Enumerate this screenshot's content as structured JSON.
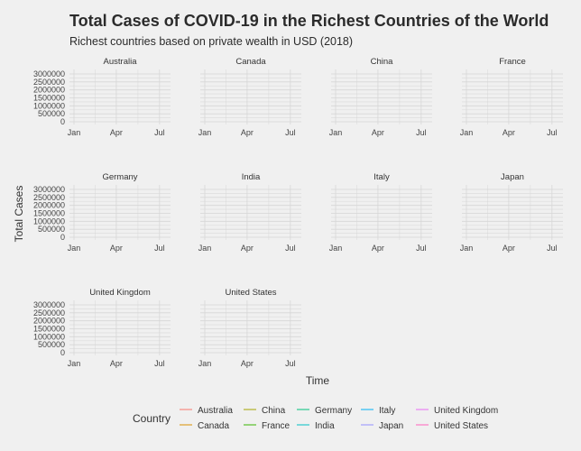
{
  "chart_data": {
    "type": "line",
    "title": "Total Cases of COVID-19 in the Richest Countries of the World",
    "subtitle": "Richest countries based on private wealth in USD (2018)",
    "xlabel": "Time",
    "ylabel": "Total Cases",
    "x_ticks": [
      "Jan",
      "Apr",
      "Jul"
    ],
    "y_ticks": [
      "0",
      "500000",
      "1000000",
      "1500000",
      "2000000",
      "2500000",
      "3000000"
    ],
    "ylim": [
      0,
      3000000
    ],
    "grid": true,
    "facets": [
      "Australia",
      "Canada",
      "China",
      "France",
      "Germany",
      "India",
      "Italy",
      "Japan",
      "United Kingdom",
      "United States"
    ],
    "series": [
      {
        "name": "Australia",
        "color": "#F8766D"
      },
      {
        "name": "Canada",
        "color": "#D89000"
      },
      {
        "name": "China",
        "color": "#A3A500"
      },
      {
        "name": "France",
        "color": "#39B600"
      },
      {
        "name": "Germany",
        "color": "#00BF7D"
      },
      {
        "name": "India",
        "color": "#00BFC4"
      },
      {
        "name": "Italy",
        "color": "#00B0F6"
      },
      {
        "name": "Japan",
        "color": "#9590FF"
      },
      {
        "name": "United Kingdom",
        "color": "#E76BF3"
      },
      {
        "name": "United States",
        "color": "#FF62BC"
      }
    ],
    "legend": {
      "title": "Country",
      "position": "bottom"
    }
  }
}
